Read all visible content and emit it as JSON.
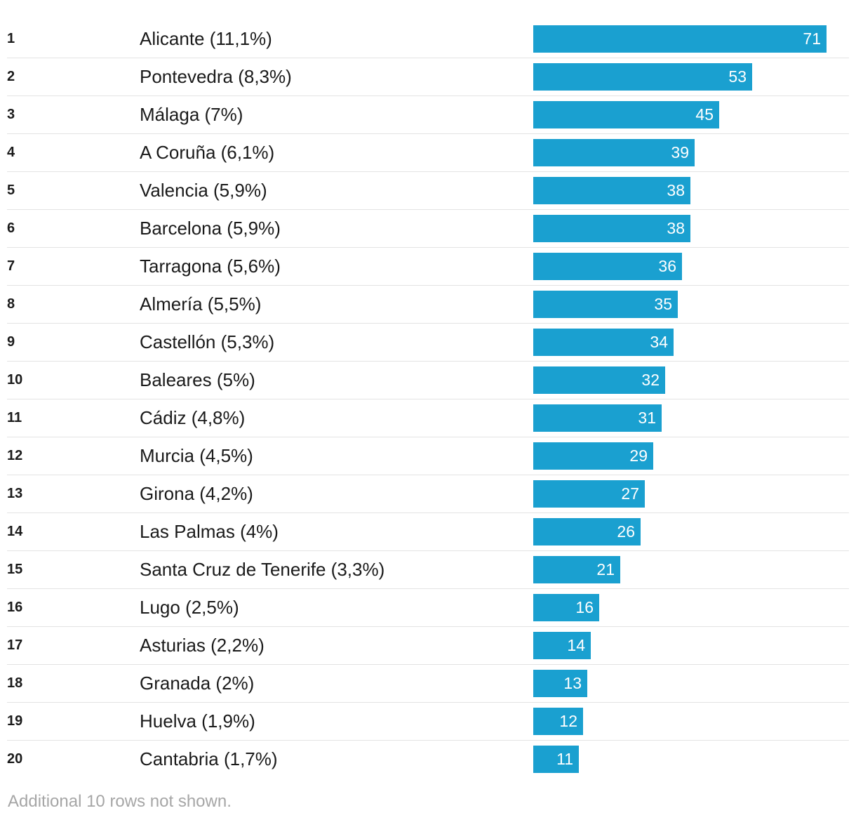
{
  "colors": {
    "bar": "#1aa0d0",
    "text": "#1a1a1a",
    "divider": "#e3e3e3",
    "footnote": "#a6a6a6"
  },
  "chart_data": {
    "type": "bar",
    "orientation": "horizontal",
    "ranks": [
      "1",
      "2",
      "3",
      "4",
      "5",
      "6",
      "7",
      "8",
      "9",
      "10",
      "11",
      "12",
      "13",
      "14",
      "15",
      "16",
      "17",
      "18",
      "19",
      "20"
    ],
    "categories": [
      "Alicante (11,1%)",
      "Pontevedra (8,3%)",
      "Málaga (7%)",
      "A Coruña (6,1%)",
      "Valencia (5,9%)",
      "Barcelona (5,9%)",
      "Tarragona (5,6%)",
      "Almería (5,5%)",
      "Castellón (5,3%)",
      "Baleares (5%)",
      "Cádiz (4,8%)",
      "Murcia (4,5%)",
      "Girona (4,2%)",
      "Las Palmas (4%)",
      "Santa Cruz de Tenerife (3,3%)",
      "Lugo (2,5%)",
      "Asturias (2,2%)",
      "Granada (2%)",
      "Huelva (1,9%)",
      "Cantabria (1,7%)"
    ],
    "values": [
      71,
      53,
      45,
      39,
      38,
      38,
      36,
      35,
      34,
      32,
      31,
      29,
      27,
      26,
      21,
      16,
      14,
      13,
      12,
      11
    ],
    "xlim": [
      0,
      71
    ],
    "title": "",
    "xlabel": "",
    "ylabel": ""
  },
  "footnote": "Additional 10 rows not shown."
}
